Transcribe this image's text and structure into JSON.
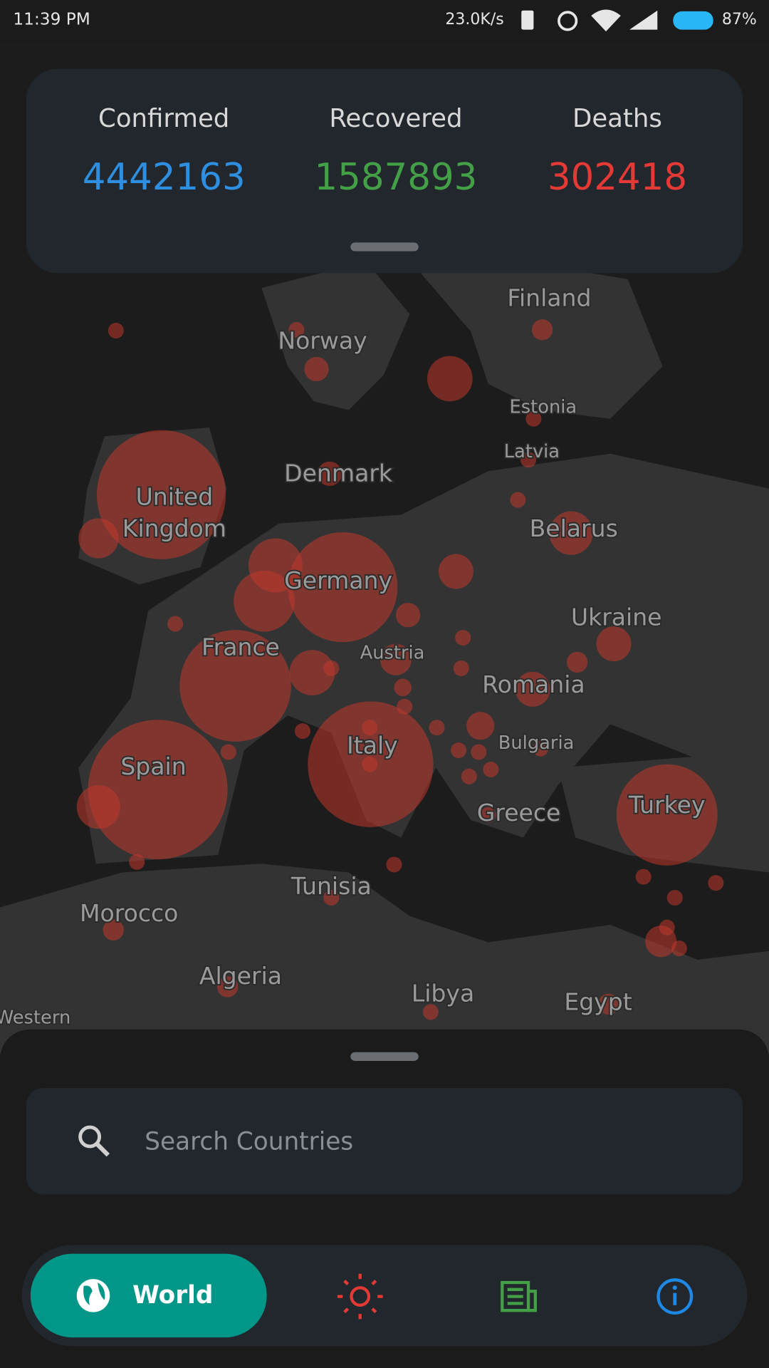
{
  "status_bar": {
    "time": "11:39 PM",
    "net_speed": "23.0K/s",
    "battery": "87%"
  },
  "stats": [
    {
      "label": "Confirmed",
      "value": 4442163
    },
    {
      "label": "Recovered",
      "value": 1587893
    },
    {
      "label": "Deaths",
      "value": 302418
    }
  ],
  "map": {
    "labels": [
      "Finland",
      "Norway",
      "Estonia",
      "Latvia",
      "Denmark",
      "United",
      "Kingdom",
      "Belarus",
      "Germany",
      "Ukraine",
      "France",
      "Austria",
      "Romania",
      "Bulgaria",
      "Italy",
      "Spain",
      "Turkey",
      "Greece",
      "Tunisia",
      "Morocco",
      "Algeria",
      "Libya",
      "Egypt",
      "Western"
    ]
  },
  "search": {
    "placeholder": "Search Countries"
  },
  "nav": {
    "active": "World"
  }
}
